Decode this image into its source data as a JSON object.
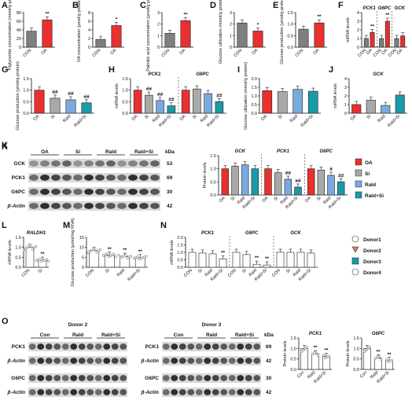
{
  "colors": {
    "con": "#7f7f7f",
    "oa": "#e8302e",
    "si": "#a9a9a9",
    "rald": "#7aa9e0",
    "raldsi": "#1a9aa8"
  },
  "panels": {
    "A": {
      "letter": "A",
      "ylabel": "Triglyceride concentration (mmol/g protein)",
      "cats": [
        "CON",
        "OA"
      ],
      "values": [
        37,
        63
      ],
      "ymax": 80,
      "ticks": [
        "0",
        "20",
        "40",
        "60",
        "80"
      ],
      "sig": [
        "",
        "**"
      ],
      "colors": [
        "con",
        "oa"
      ]
    },
    "B": {
      "letter": "B",
      "ylabel": "OA concentration (μmol/g protein)",
      "cats": [
        "CON",
        "OA"
      ],
      "values": [
        1.8,
        5.0
      ],
      "ymax": 8,
      "ticks": [
        "0",
        "2",
        "4",
        "6",
        "8"
      ],
      "sig": [
        "",
        "*"
      ],
      "colors": [
        "con",
        "oa"
      ]
    },
    "C": {
      "letter": "C",
      "ylabel": "Palmitic acid concentration (μmol/g protein)",
      "cats": [
        "CON",
        "OA"
      ],
      "values": [
        1.2,
        2.3
      ],
      "ymax": 3,
      "ticks": [
        "0",
        "1",
        "2",
        "3"
      ],
      "sig": [
        "",
        "**"
      ],
      "colors": [
        "con",
        "oa"
      ]
    },
    "D": {
      "letter": "D",
      "ylabel": "Glucose utilization (mmol/g protein)",
      "cats": [
        "CON",
        "OA"
      ],
      "values": [
        2.1,
        1.4
      ],
      "ymax": 3,
      "ticks": [
        "0",
        "1",
        "2",
        "3"
      ],
      "sig": [
        "",
        "*"
      ],
      "colors": [
        "con",
        "oa"
      ]
    },
    "E": {
      "letter": "E",
      "ylabel": "Glucose production (μmol/g protein)",
      "cats": [
        "CON",
        "OA"
      ],
      "values": [
        0.78,
        1.05
      ],
      "ymax": 1.5,
      "ticks": [
        "0.0",
        "0.5",
        "1.0",
        "1.5"
      ],
      "sig": [
        "",
        "**"
      ],
      "colors": [
        "con",
        "oa"
      ]
    },
    "F": {
      "letter": "F",
      "ylabel": "mRNA levels",
      "groups": [
        "PCK1",
        "G6PC",
        "GCK"
      ],
      "cats": [
        "CON",
        "OA"
      ],
      "values": [
        [
          1.0,
          1.7
        ],
        [
          1.0,
          3.0
        ],
        [
          1.0,
          1.3
        ]
      ],
      "ymax": 4,
      "ticks": [
        "0",
        "1",
        "2",
        "3",
        "4"
      ],
      "sig": [
        [
          "",
          "**"
        ],
        [
          "",
          "**"
        ],
        [
          "",
          ""
        ]
      ],
      "colors": [
        "con",
        "oa"
      ]
    },
    "G": {
      "letter": "G",
      "ylabel": "Glucose production (μmol/g protein)",
      "cats": [
        "OA",
        "Si",
        "Rald",
        "Rald+Si"
      ],
      "values": [
        1.0,
        0.65,
        0.58,
        0.45
      ],
      "ymax": 1.5,
      "ticks": [
        "0.0",
        "0.5",
        "1.0",
        "1.5"
      ],
      "sig": [
        "",
        "##",
        "##",
        "##"
      ],
      "colors": [
        "oa",
        "si",
        "rald",
        "raldsi"
      ]
    },
    "H": {
      "letter": "H",
      "ylabel": "mRNA levels",
      "groups": [
        "PCK1",
        "G6PC"
      ],
      "cats": [
        "OA",
        "Si",
        "Rald",
        "Rald+Si"
      ],
      "values": [
        [
          1.0,
          0.78,
          0.55,
          0.32
        ],
        [
          1.0,
          1.05,
          0.85,
          0.5
        ]
      ],
      "ymax": 1.5,
      "ticks": [
        "0.0",
        "0.5",
        "1.0",
        "1.5"
      ],
      "sig": [
        [
          "",
          "##",
          "##",
          "##"
        ],
        [
          "",
          "",
          "",
          "##"
        ]
      ],
      "colors": [
        "oa",
        "si",
        "rald",
        "raldsi"
      ]
    },
    "I": {
      "letter": "I",
      "ylabel": "Glucose utilization (mmol/g protein)",
      "cats": [
        "OA",
        "Si",
        "Rald",
        "Rald+Si"
      ],
      "values": [
        1.3,
        1.25,
        1.38,
        1.27
      ],
      "ymax": 2,
      "ticks": [
        "0.0",
        "0.5",
        "1.0",
        "1.5",
        "2.0"
      ],
      "sig": [
        "",
        "",
        "",
        ""
      ],
      "colors": [
        "oa",
        "si",
        "rald",
        "raldsi"
      ]
    },
    "J": {
      "letter": "J",
      "ylabel": "mRNA levels",
      "title": "GCK",
      "cats": [
        "OA",
        "Si",
        "Rald",
        "Rald+Si"
      ],
      "values": [
        1.0,
        1.5,
        0.9,
        2.1
      ],
      "ymax": 4,
      "ticks": [
        "0",
        "1",
        "2",
        "3",
        "4"
      ],
      "sig": [
        "",
        "",
        "",
        ""
      ],
      "colors": [
        "oa",
        "si",
        "rald",
        "raldsi"
      ]
    },
    "K": {
      "letter": "K",
      "ylabel": "Protein levels",
      "groups": [
        "GCK",
        "PCK1",
        "G6PC"
      ],
      "cats": [
        "OA",
        "Si",
        "Rald",
        "Rald+Si"
      ],
      "values": [
        [
          1.0,
          1.1,
          1.15,
          1.0
        ],
        [
          1.0,
          0.85,
          0.6,
          0.3
        ],
        [
          1.0,
          0.95,
          0.75,
          0.5
        ]
      ],
      "ymax": 1.5,
      "ticks": [
        "0.0",
        "0.5",
        "1.0",
        "1.5"
      ],
      "sig": [
        [
          "",
          "",
          "",
          ""
        ],
        [
          "",
          "",
          "##",
          "##"
        ],
        [
          "",
          "",
          "#",
          "##"
        ]
      ],
      "colors": [
        "oa",
        "si",
        "rald",
        "raldsi"
      ]
    },
    "L": {
      "letter": "L",
      "ylabel": "mRNA levels",
      "title": "RALDH1",
      "cats": [
        "CON",
        "Si"
      ],
      "values": [
        1.0,
        0.35
      ],
      "ymax": 1.5,
      "ticks": [
        "0.0",
        "0.5",
        "1.0",
        "1.5"
      ],
      "sig": [
        "",
        "**"
      ]
    },
    "M": {
      "letter": "M",
      "ylabel": "Glucose production (μmol/mg RNA)",
      "cats": [
        "CON",
        "Si",
        "Rald",
        "Rald+Si"
      ],
      "values": [
        8.5,
        6.0,
        5.5,
        4.8
      ],
      "ymax": 15,
      "ticks": [
        "0",
        "5",
        "10",
        "15"
      ],
      "sig": [
        "",
        "**",
        "**",
        "**"
      ]
    },
    "N": {
      "letter": "N",
      "ylabel": "mRNA levels",
      "groups": [
        "PCK1",
        "G6PC",
        "GCK"
      ],
      "cats": [
        "CON",
        "Si",
        "Rald",
        "Rald+Si"
      ],
      "values": [
        [
          1.0,
          0.95,
          0.9,
          0.55
        ],
        [
          1.0,
          0.85,
          0.2,
          0.15
        ],
        [
          1.0,
          1.0,
          1.0,
          0.95
        ]
      ],
      "ymax": 2,
      "ticks": [
        "0.0",
        "0.5",
        "1.0",
        "1.5",
        "2.0"
      ],
      "sig": [
        [
          "",
          "",
          "",
          "**"
        ],
        [
          "",
          "",
          "**",
          "**"
        ],
        [
          "",
          "",
          "",
          ""
        ]
      ]
    },
    "O1": {
      "ylabel": "Protein levels",
      "title": "PCK1",
      "cats": [
        "Con",
        "Rald",
        "Rald+Si"
      ],
      "values": [
        1.0,
        0.75,
        0.62
      ],
      "ymax": 1.5,
      "ticks": [
        "0.0",
        "0.5",
        "1.0",
        "1.5"
      ],
      "sig": [
        "",
        "**",
        "**"
      ]
    },
    "O2": {
      "ylabel": "Protein levels",
      "title": "G6PC",
      "cats": [
        "Con",
        "Rald",
        "Rald+Si"
      ],
      "values": [
        1.0,
        0.55,
        0.42
      ],
      "ymax": 1.5,
      "ticks": [
        "0.0",
        "0.5",
        "1.0",
        "1.5"
      ],
      "sig": [
        "",
        "**",
        "**"
      ]
    }
  },
  "blotK": {
    "letter": "K",
    "cols": [
      "OA",
      "Si",
      "Rald",
      "Rald+Si"
    ],
    "rows": [
      "GCK",
      "PCK1",
      "G6PC",
      "β-Actin"
    ],
    "kda_label": "kDa",
    "kda": [
      "53",
      "69",
      "30",
      "42"
    ]
  },
  "blotO": {
    "letter": "O",
    "donor2": "Donor 2",
    "donor3": "Donor 3",
    "cols": [
      "Con",
      "Rald",
      "Rald+Si"
    ],
    "rows1": [
      "PCK1",
      "β-Actin"
    ],
    "rows2": [
      "G6PC",
      "β-Actin"
    ],
    "kda_label": "kDa",
    "kda": [
      "69",
      "42",
      "30",
      "42"
    ]
  },
  "legend_treat": [
    "OA",
    "Si",
    "Rald",
    "Rald+Si"
  ],
  "legend_donor": [
    "Donor1",
    "Donor2",
    "Donor3",
    "Donor4"
  ]
}
